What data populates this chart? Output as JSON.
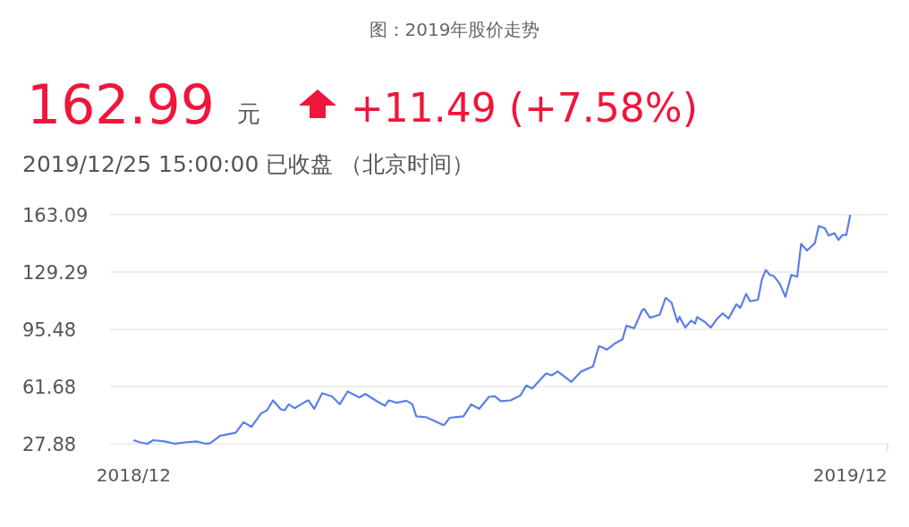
{
  "chart_data": {
    "type": "line",
    "title": "图：2019年股价走势",
    "annotations": [
      "162.99",
      "元",
      "+11.49 (+7.58%)",
      "2019/12/25 15:00:00   已收盘 （北京时间）"
    ],
    "x": [
      "2018-12-25",
      "2018-12-28",
      "2019-01-01",
      "2019-01-04",
      "2019-01-10",
      "2019-01-15",
      "2019-01-21",
      "2019-01-26",
      "2019-01-31",
      "2019-02-02",
      "2019-02-07",
      "2019-02-11",
      "2019-02-15",
      "2019-02-19",
      "2019-02-23",
      "2019-02-28",
      "2019-03-03",
      "2019-03-06",
      "2019-03-10",
      "2019-03-12",
      "2019-03-14",
      "2019-03-17",
      "2019-03-22",
      "2019-03-24",
      "2019-03-27",
      "2019-03-31",
      "2019-04-05",
      "2019-04-09",
      "2019-04-13",
      "2019-04-19",
      "2019-04-22",
      "2019-04-28",
      "2019-05-02",
      "2019-05-04",
      "2019-05-08",
      "2019-05-13",
      "2019-05-16",
      "2019-05-18",
      "2019-05-23",
      "2019-05-27",
      "2019-06-01",
      "2019-06-04",
      "2019-06-11",
      "2019-06-15",
      "2019-06-19",
      "2019-06-24",
      "2019-06-27",
      "2019-06-30",
      "2019-07-05",
      "2019-07-10",
      "2019-07-13",
      "2019-07-16",
      "2019-07-23",
      "2019-07-26",
      "2019-07-29",
      "2019-08-05",
      "2019-08-10",
      "2019-08-16",
      "2019-08-19",
      "2019-08-21",
      "2019-08-23",
      "2019-08-27",
      "2019-08-31",
      "2019-09-02",
      "2019-09-06",
      "2019-09-10",
      "2019-09-11",
      "2019-09-14",
      "2019-09-19",
      "2019-09-22",
      "2019-09-25",
      "2019-09-28",
      "2019-09-29",
      "2019-10-02",
      "2019-10-05",
      "2019-10-07",
      "2019-10-08",
      "2019-10-12",
      "2019-10-15",
      "2019-10-18",
      "2019-10-21",
      "2019-10-24",
      "2019-10-28",
      "2019-10-30",
      "2019-11-02",
      "2019-11-04",
      "2019-11-08",
      "2019-11-10",
      "2019-11-12",
      "2019-11-14",
      "2019-11-16",
      "2019-11-19",
      "2019-11-22",
      "2019-11-25",
      "2019-11-28",
      "2019-11-30",
      "2019-12-03",
      "2019-12-07",
      "2019-12-09",
      "2019-12-12",
      "2019-12-14",
      "2019-12-17",
      "2019-12-19",
      "2019-12-21",
      "2019-12-23",
      "2019-12-25"
    ],
    "series": [
      {
        "color": "#5b7fe8",
        "values": [
          30.0,
          28.8,
          27.9,
          30.0,
          29.3,
          27.9,
          28.8,
          29.3,
          27.9,
          28.2,
          32.6,
          33.5,
          34.4,
          40.6,
          37.9,
          45.9,
          47.7,
          53.5,
          48.2,
          47.7,
          51.2,
          48.9,
          52.4,
          53.5,
          48.5,
          57.7,
          55.9,
          51.2,
          58.8,
          55.2,
          57.3,
          53.0,
          50.3,
          53.5,
          52.1,
          53.3,
          51.2,
          44.1,
          43.6,
          41.5,
          38.8,
          43.2,
          44.1,
          51.2,
          48.5,
          55.6,
          55.9,
          53.0,
          53.5,
          56.4,
          62.3,
          60.5,
          69.4,
          68.3,
          70.6,
          64.4,
          70.6,
          73.6,
          85.6,
          84.7,
          83.4,
          87.0,
          89.5,
          97.6,
          96.1,
          106.7,
          107.6,
          102.3,
          104.1,
          114.1,
          111.2,
          99.7,
          102.8,
          96.5,
          100.6,
          98.8,
          102.7,
          99.7,
          96.5,
          101.4,
          104.9,
          101.8,
          110.2,
          108.1,
          116.4,
          112.0,
          112.9,
          124.7,
          130.5,
          127.6,
          127.0,
          122.6,
          114.6,
          127.6,
          126.5,
          145.9,
          142.0,
          146.4,
          156.4,
          155.2,
          150.8,
          152.2,
          148.2,
          151.1,
          151.1,
          162.99
        ]
      }
    ],
    "xlim": [
      "2018-12-13",
      "2020-01-13"
    ],
    "xticks": [
      {
        "value": "2018-12-25",
        "label": "2018/12"
      },
      {
        "value": "2019-12-25",
        "label": "2019/12"
      }
    ],
    "ylim": [
      27.88,
      163.09
    ],
    "yticks": [
      27.88,
      61.68,
      95.48,
      129.29,
      163.09
    ],
    "grid": "y"
  }
}
